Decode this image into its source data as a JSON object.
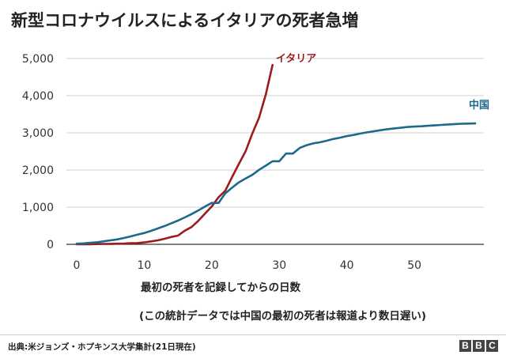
{
  "title": "新型コロナウイルスによるイタリアの死者急増",
  "chart_data": {
    "type": "line",
    "xlabel": "最初の死者を記録してからの日数",
    "note": "(この統計データでは中国の最初の死者は報道より数日遅い)",
    "xlim": [
      0,
      59
    ],
    "ylim": [
      0,
      5000
    ],
    "xticks": [
      0,
      10,
      20,
      30,
      40,
      50
    ],
    "yticks": [
      0,
      1000,
      2000,
      3000,
      4000,
      5000
    ],
    "ytick_labels": [
      "0",
      "1,000",
      "2,000",
      "3,000",
      "4,000",
      "5,000"
    ],
    "series": [
      {
        "name": "イタリア",
        "color": "#9b1b1f",
        "x": [
          0,
          1,
          2,
          3,
          4,
          5,
          6,
          7,
          8,
          9,
          10,
          11,
          12,
          13,
          14,
          15,
          16,
          17,
          18,
          19,
          20,
          21,
          22,
          23,
          24,
          25,
          26,
          27,
          28,
          29
        ],
        "values": [
          1,
          2,
          3,
          7,
          10,
          12,
          17,
          21,
          29,
          34,
          52,
          79,
          107,
          148,
          197,
          233,
          366,
          463,
          631,
          827,
          1016,
          1266,
          1441,
          1809,
          2158,
          2503,
          2978,
          3405,
          4032,
          4825
        ]
      },
      {
        "name": "中国",
        "color": "#1b6a8a",
        "x": [
          0,
          1,
          2,
          3,
          4,
          5,
          6,
          7,
          8,
          9,
          10,
          11,
          12,
          13,
          14,
          15,
          16,
          17,
          18,
          19,
          20,
          21,
          22,
          23,
          24,
          25,
          26,
          27,
          28,
          29,
          30,
          31,
          32,
          33,
          34,
          35,
          36,
          37,
          38,
          39,
          40,
          41,
          42,
          43,
          44,
          45,
          46,
          47,
          48,
          49,
          50,
          51,
          52,
          53,
          54,
          55,
          56,
          57,
          58,
          59
        ],
        "values": [
          17,
          25,
          41,
          56,
          80,
          106,
          132,
          170,
          213,
          259,
          304,
          362,
          426,
          492,
          565,
          638,
          724,
          813,
          910,
          1016,
          1113,
          1113,
          1370,
          1523,
          1666,
          1770,
          1868,
          2004,
          2118,
          2236,
          2236,
          2442,
          2442,
          2592,
          2663,
          2715,
          2744,
          2788,
          2835,
          2870,
          2912,
          2943,
          2981,
          3012,
          3042,
          3070,
          3097,
          3119,
          3136,
          3158,
          3169,
          3176,
          3189,
          3199,
          3213,
          3226,
          3237,
          3245,
          3249,
          3253
        ]
      }
    ]
  },
  "source": "出典:米ジョンズ・ホプキンス大学集計(21日現在)",
  "logo": [
    "B",
    "B",
    "C"
  ]
}
